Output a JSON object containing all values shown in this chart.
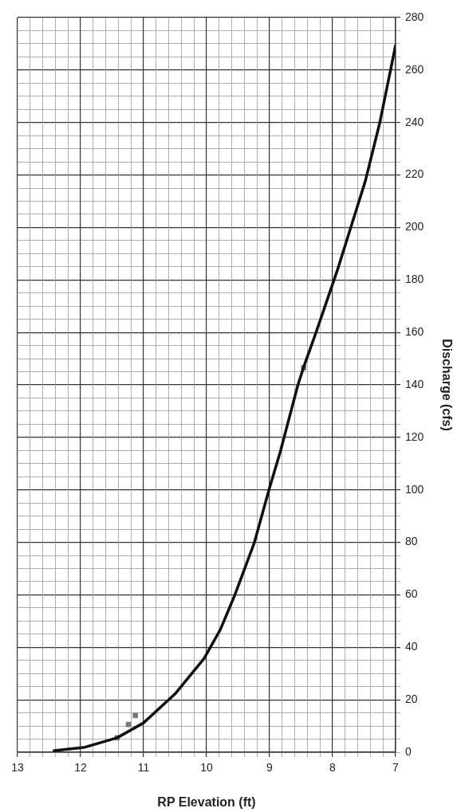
{
  "chart_data": {
    "type": "scatter",
    "xlabel": "RP Elevation (ft)",
    "ylabel": "Discharge (cfs)",
    "xlim": [
      13,
      7
    ],
    "ylim": [
      0,
      280
    ],
    "xticks": [
      13,
      {
        "value": 12.8,
        "label": null
      },
      {
        "value": 12.6,
        "label": null
      },
      {
        "value": 12.4,
        "label": null
      },
      {
        "value": 12.2,
        "label": null
      },
      12,
      {
        "value": 11.8,
        "label": null
      },
      {
        "value": 11.6,
        "label": null
      },
      {
        "value": 11.4,
        "label": null
      },
      {
        "value": 11.2,
        "label": null
      },
      11,
      {
        "value": 10.8,
        "label": null
      },
      {
        "value": 10.6,
        "label": null
      },
      {
        "value": 10.4,
        "label": null
      },
      {
        "value": 10.2,
        "label": null
      },
      10,
      {
        "value": 9.8,
        "label": null
      },
      {
        "value": 9.6,
        "label": null
      },
      {
        "value": 9.4,
        "label": null
      },
      {
        "value": 9.2,
        "label": null
      },
      9,
      {
        "value": 8.8,
        "label": null
      },
      {
        "value": 8.6,
        "label": null
      },
      {
        "value": 8.4,
        "label": null
      },
      {
        "value": 8.2,
        "label": null
      },
      8,
      {
        "value": 7.8,
        "label": null
      },
      {
        "value": 7.6,
        "label": null
      },
      {
        "value": 7.4,
        "label": null
      },
      {
        "value": 7.2,
        "label": null
      },
      7
    ],
    "yticks": [
      0,
      {
        "value": 5,
        "label": null
      },
      {
        "value": 10,
        "label": null
      },
      {
        "value": 15,
        "label": null
      },
      20,
      {
        "value": 25,
        "label": null
      },
      {
        "value": 30,
        "label": null
      },
      {
        "value": 35,
        "label": null
      },
      40,
      {
        "value": 45,
        "label": null
      },
      {
        "value": 50,
        "label": null
      },
      {
        "value": 55,
        "label": null
      },
      60,
      {
        "value": 65,
        "label": null
      },
      {
        "value": 70,
        "label": null
      },
      {
        "value": 75,
        "label": null
      },
      80,
      {
        "value": 85,
        "label": null
      },
      {
        "value": 90,
        "label": null
      },
      {
        "value": 95,
        "label": null
      },
      100,
      {
        "value": 105,
        "label": null
      },
      {
        "value": 110,
        "label": null
      },
      {
        "value": 115,
        "label": null
      },
      120,
      {
        "value": 125,
        "label": null
      },
      {
        "value": 130,
        "label": null
      },
      {
        "value": 135,
        "label": null
      },
      140,
      {
        "value": 145,
        "label": null
      },
      {
        "value": 150,
        "label": null
      },
      {
        "value": 155,
        "label": null
      },
      160,
      {
        "value": 165,
        "label": null
      },
      {
        "value": 170,
        "label": null
      },
      {
        "value": 175,
        "label": null
      },
      180,
      {
        "value": 185,
        "label": null
      },
      {
        "value": 190,
        "label": null
      },
      {
        "value": 195,
        "label": null
      },
      200,
      {
        "value": 205,
        "label": null
      },
      {
        "value": 210,
        "label": null
      },
      {
        "value": 215,
        "label": null
      },
      220,
      {
        "value": 225,
        "label": null
      },
      {
        "value": 230,
        "label": null
      },
      {
        "value": 235,
        "label": null
      },
      240,
      {
        "value": 245,
        "label": null
      },
      {
        "value": 250,
        "label": null
      },
      {
        "value": 255,
        "label": null
      },
      260,
      {
        "value": 265,
        "label": null
      },
      {
        "value": 270,
        "label": null
      },
      {
        "value": 275,
        "label": null
      },
      280
    ],
    "grid": true,
    "legend": false,
    "series": [
      {
        "type": "line",
        "color": "#111111",
        "marker": "none",
        "line_style": "solid",
        "x": [
          12.42,
          11.95,
          11.42,
          11.0,
          10.49,
          10.04,
          9.78,
          9.55,
          9.24,
          9.01,
          8.83,
          8.55,
          8.46,
          8.27,
          7.92,
          7.48,
          7.25,
          7.0
        ],
        "values": [
          0.6,
          1.8,
          5.5,
          11.2,
          22.5,
          35.7,
          46.8,
          60,
          80,
          100,
          114.5,
          140,
          146.7,
          159.5,
          184,
          217.7,
          240,
          269.4
        ]
      },
      {
        "type": "scatter",
        "color": "#777777",
        "marker": "square",
        "x": [
          11.42,
          11.24,
          11.13,
          8.46
        ],
        "values": [
          5.5,
          10.6,
          14,
          146.5
        ]
      }
    ]
  }
}
